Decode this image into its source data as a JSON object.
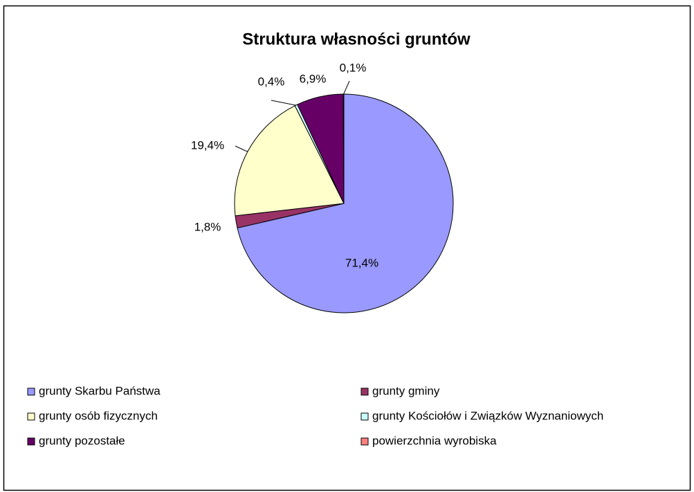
{
  "chart_data": {
    "type": "pie",
    "title": "Struktura własności gruntów",
    "categories": [
      "grunty Skarbu Państwa",
      "grunty gminy",
      "grunty osób fizycznych",
      "grunty Kościołów i Związków Wyznaniowych",
      "grunty pozostałe",
      "powierzchnia wyrobiska"
    ],
    "values": [
      71.4,
      1.8,
      19.4,
      0.4,
      6.9,
      0.1
    ],
    "value_labels": [
      "71,4%",
      "1,8%",
      "19,4%",
      "0,4%",
      "6,9%",
      "0,1%"
    ],
    "colors": [
      "#9999ff",
      "#993366",
      "#ffffcc",
      "#ccffff",
      "#660066",
      "#ff8080"
    ],
    "legend": "bottom"
  }
}
